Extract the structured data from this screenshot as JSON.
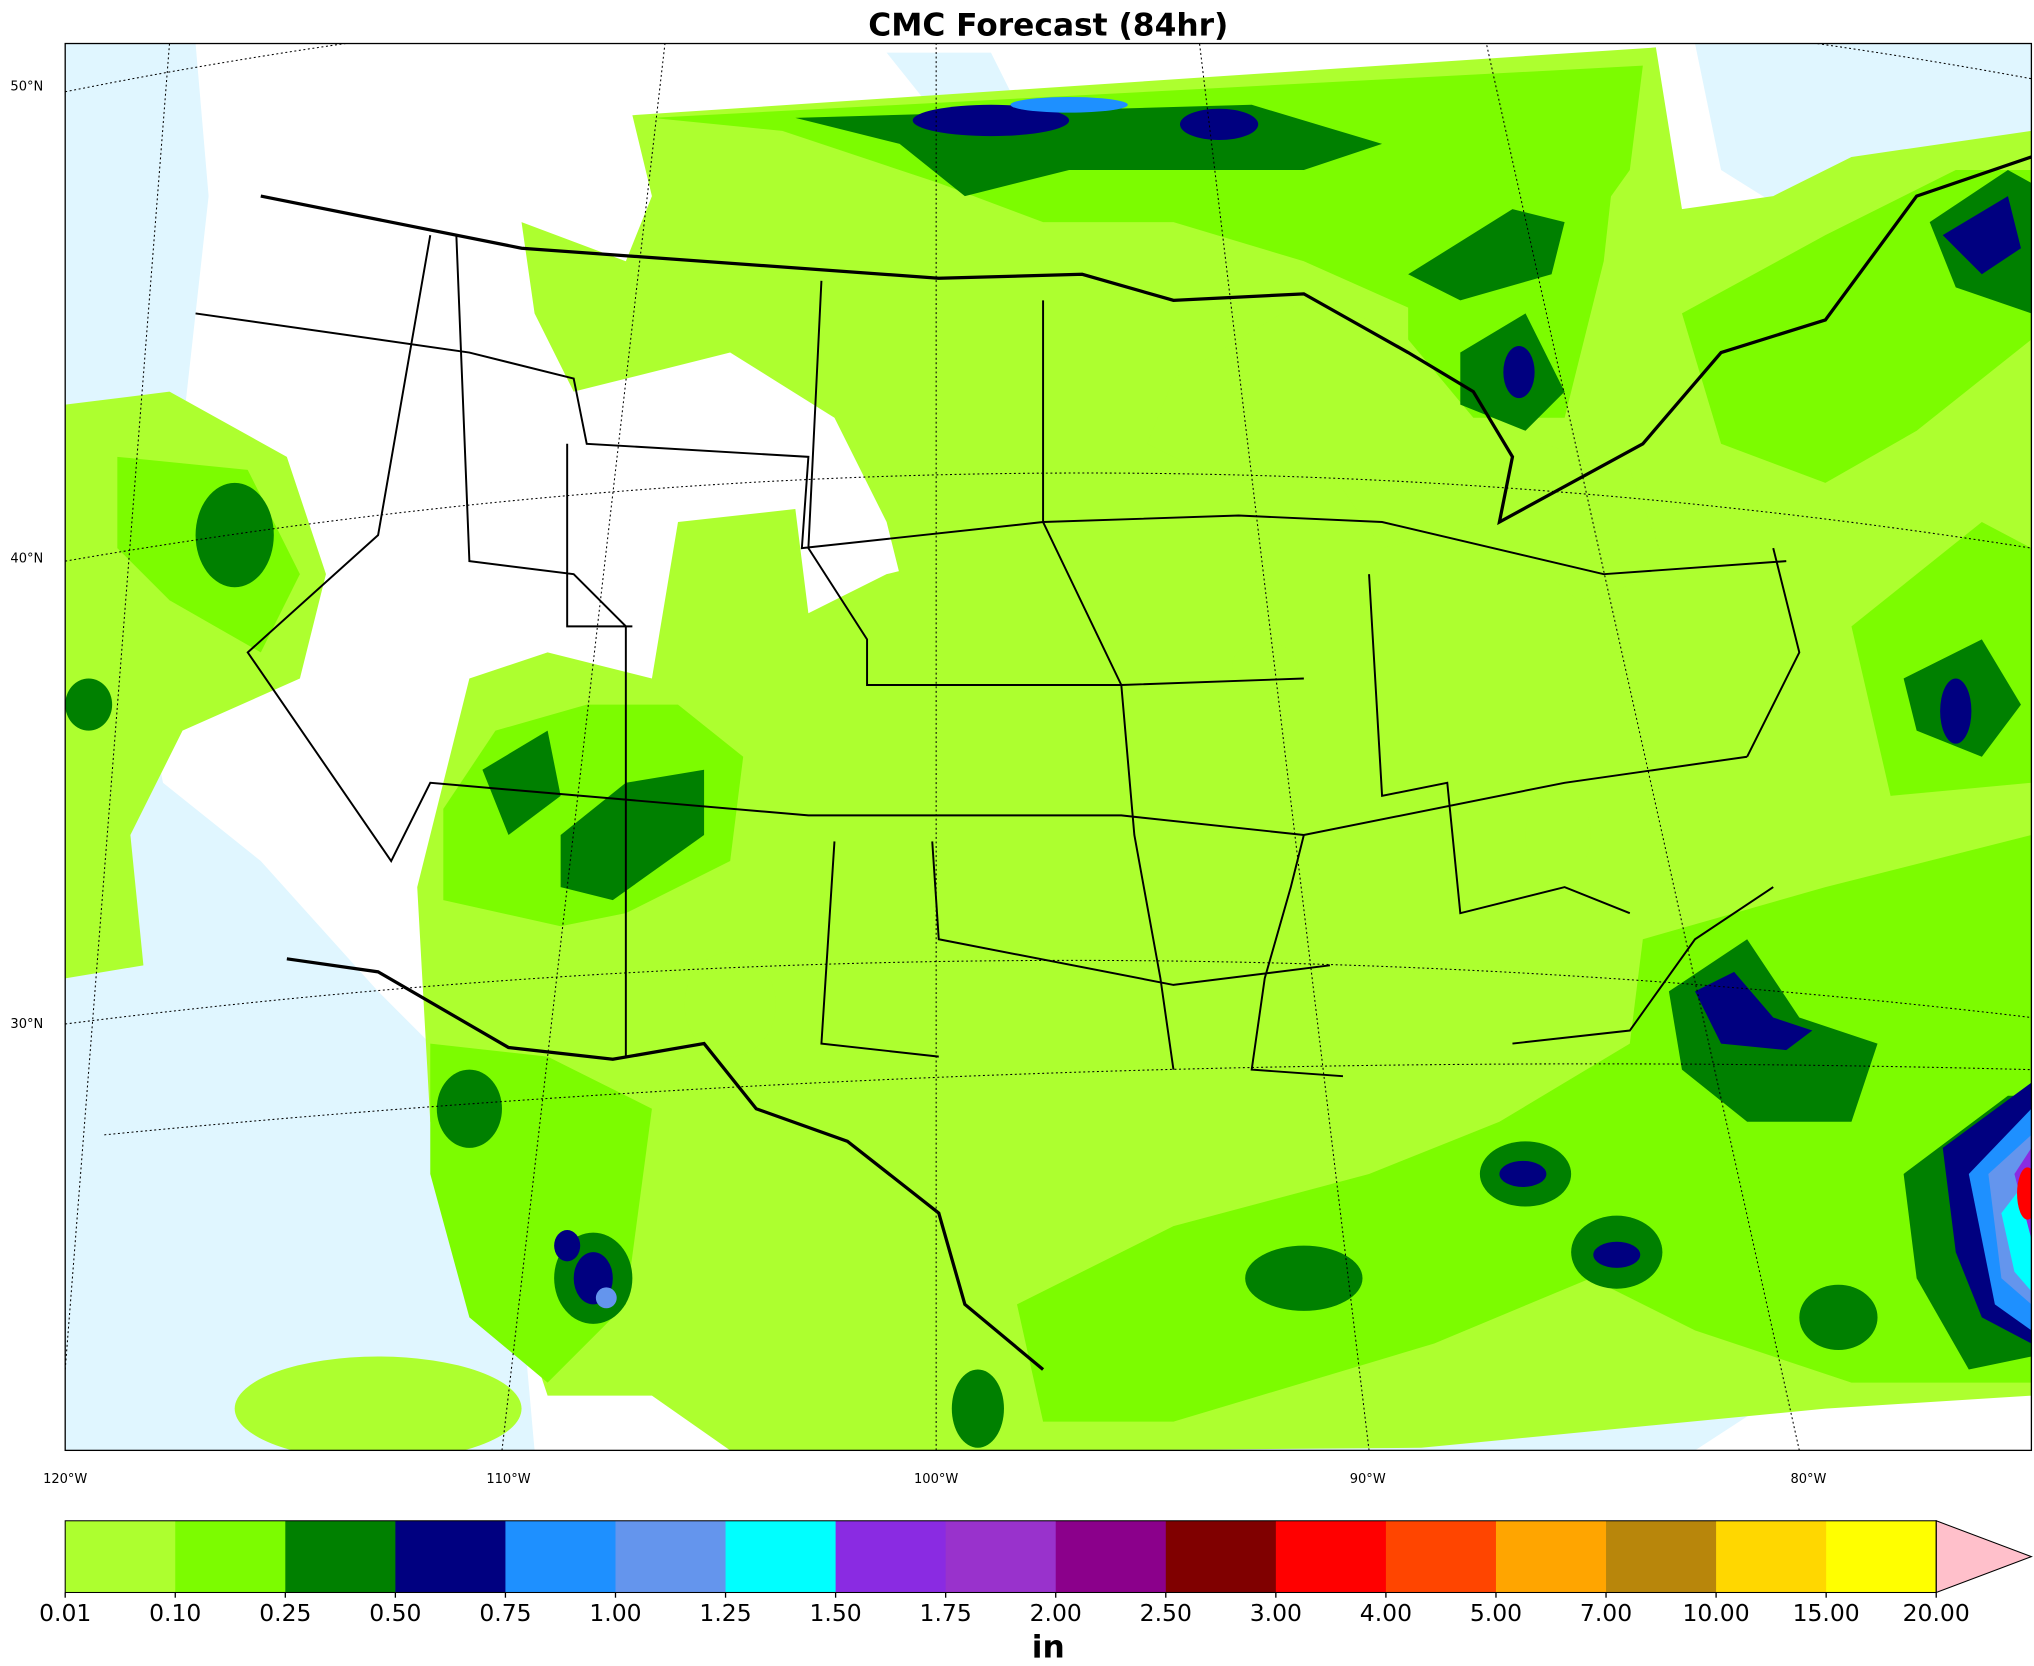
{
  "title": "CMC Forecast (84hr)",
  "lat_labels": [
    "50°N",
    "40°N",
    "30°N"
  ],
  "lon_labels": [
    "120°W",
    "110°W",
    "100°W",
    "90°W",
    "80°W"
  ],
  "colorbar": {
    "unit": "in",
    "levels": [
      {
        "value": 0.01,
        "label": "0.01"
      },
      {
        "value": 0.1,
        "label": "0.10"
      },
      {
        "value": 0.25,
        "label": "0.25"
      },
      {
        "value": 0.5,
        "label": "0.50"
      },
      {
        "value": 0.75,
        "label": "0.75"
      },
      {
        "value": 1,
        "label": "1.00"
      },
      {
        "value": 1.25,
        "label": "1.25"
      },
      {
        "value": 1.5,
        "label": "1.50"
      },
      {
        "value": 1.75,
        "label": "1.75"
      },
      {
        "value": 2,
        "label": "2.00"
      },
      {
        "value": 2.5,
        "label": "2.50"
      },
      {
        "value": 3,
        "label": "3.00"
      },
      {
        "value": 4,
        "label": "4.00"
      },
      {
        "value": 5,
        "label": "5.00"
      },
      {
        "value": 7,
        "label": "7.00"
      },
      {
        "value": 10,
        "label": "10.00"
      },
      {
        "value": 15,
        "label": "15.00"
      },
      {
        "value": 20,
        "label": "20.00"
      }
    ],
    "colors": [
      "#adff2f",
      "#7cfc00",
      "#008000",
      "#000080",
      "#1e90ff",
      "#6495ed",
      "#00ffff",
      "#8a2be2",
      "#9932cc",
      "#8b008b",
      "#800000",
      "#ff0000",
      "#ff4500",
      "#ffa500",
      "#b8860b",
      "#ffd700",
      "#ffff00"
    ],
    "extend_color": "#ffc0cb"
  }
}
